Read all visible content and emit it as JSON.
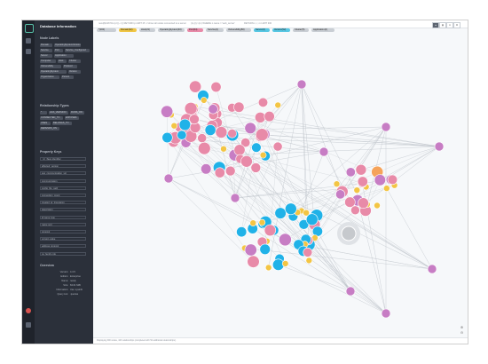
{
  "sidebar": {
    "title": "Database Information",
    "node_labels_heading": "Node Labels",
    "node_labels": [
      "Domain",
      "OperatingSystemVersion",
      "Service",
      "Port",
      "Service_Configured",
      "Server",
      "Application",
      "Computer",
      "Host",
      "Cluster",
      "Vulnerability",
      "Protocol",
      "OperatingSystem",
      "Version",
      "Organization",
      "Person"
    ],
    "relationship_types_heading": "Relationship Types",
    "relationship_types": [
      "*",
      "HAS_VERSION",
      "RUNS_ON",
      "CONNECTED_TO",
      "EXPOSES",
      "USES",
      "BELONGS_TO",
      "DEPENDS_ON"
    ],
    "property_keys_heading": "Property Keys",
    "property_keys": [
      "_id   _flags   identifier",
      "affected_version",
      "avg_communication_vol",
      "communication",
      "config_file_path",
      "connection_count",
      "created_at_timestamp",
      "description",
      "id   name   type",
      "name   port",
      "protocol",
      "version   value",
      "address   protocol",
      "os_family   role"
    ],
    "overview_heading": "Overview",
    "overview": [
      {
        "label": "Version:",
        "value": "4.4.5"
      },
      {
        "label": "Edition:",
        "value": "Enterprise"
      },
      {
        "label": "Name:",
        "value": "neo4j"
      },
      {
        "label": "Size:",
        "value": "84.61 MiB"
      },
      {
        "label": "Information:",
        "value": "Use :sysinfo"
      },
      {
        "label": "Query List:",
        "value": ":queries"
      }
    ]
  },
  "topbar": {
    "crumbs": [
      "neo4j$ MATCH p=()-->() RETURN p LIMIT 25",
      "// show all nodes connected to a server",
      "(n)-[r]->(m) WHERE n.name = 'web_server'",
      "RETURN n, r, m LIMIT 300"
    ]
  },
  "legend": {
    "items": [
      {
        "label": "*(300)",
        "color": "#c9ced4"
      },
      {
        "label": "Domain(32)",
        "color": "#f0c644"
      },
      {
        "label": "Host(21)",
        "color": "#c9ced4"
      },
      {
        "label": "OperatingSystem(40)",
        "color": "#c9ced4"
      },
      {
        "label": "Port(64)",
        "color": "#e88aa8"
      },
      {
        "label": "Service(4)",
        "color": "#c9ced4"
      },
      {
        "label": "Vulnerability(80)",
        "color": "#c9ced4"
      },
      {
        "label": "Server(2)",
        "color": "#57c7e3"
      },
      {
        "label": "Version(52)",
        "color": "#57c7e3"
      },
      {
        "label": "Cluster(5)",
        "color": "#c9ced4"
      },
      {
        "label": "Application(2)",
        "color": "#c9ced4"
      }
    ]
  },
  "footer": {
    "text": "Displaying 300 nodes, 443 relationships (completed with 52 additional relationships)."
  },
  "icons": {
    "rail_top": "database-icon",
    "rail_1": "star-icon",
    "rail_2": "document-icon",
    "rail_bottom_1": "help-icon",
    "rail_bottom_2": "settings-icon",
    "zoom_in": "zoom-in-icon",
    "zoom_out": "zoom-out-icon",
    "fit": "fit-screen-icon"
  },
  "colors": {
    "pink": "#e88aa8",
    "blue": "#20b2e8",
    "yellow": "#f3c544",
    "purple": "#c77dc4",
    "orange": "#f5a35a",
    "gray": "#c6c9cd"
  }
}
